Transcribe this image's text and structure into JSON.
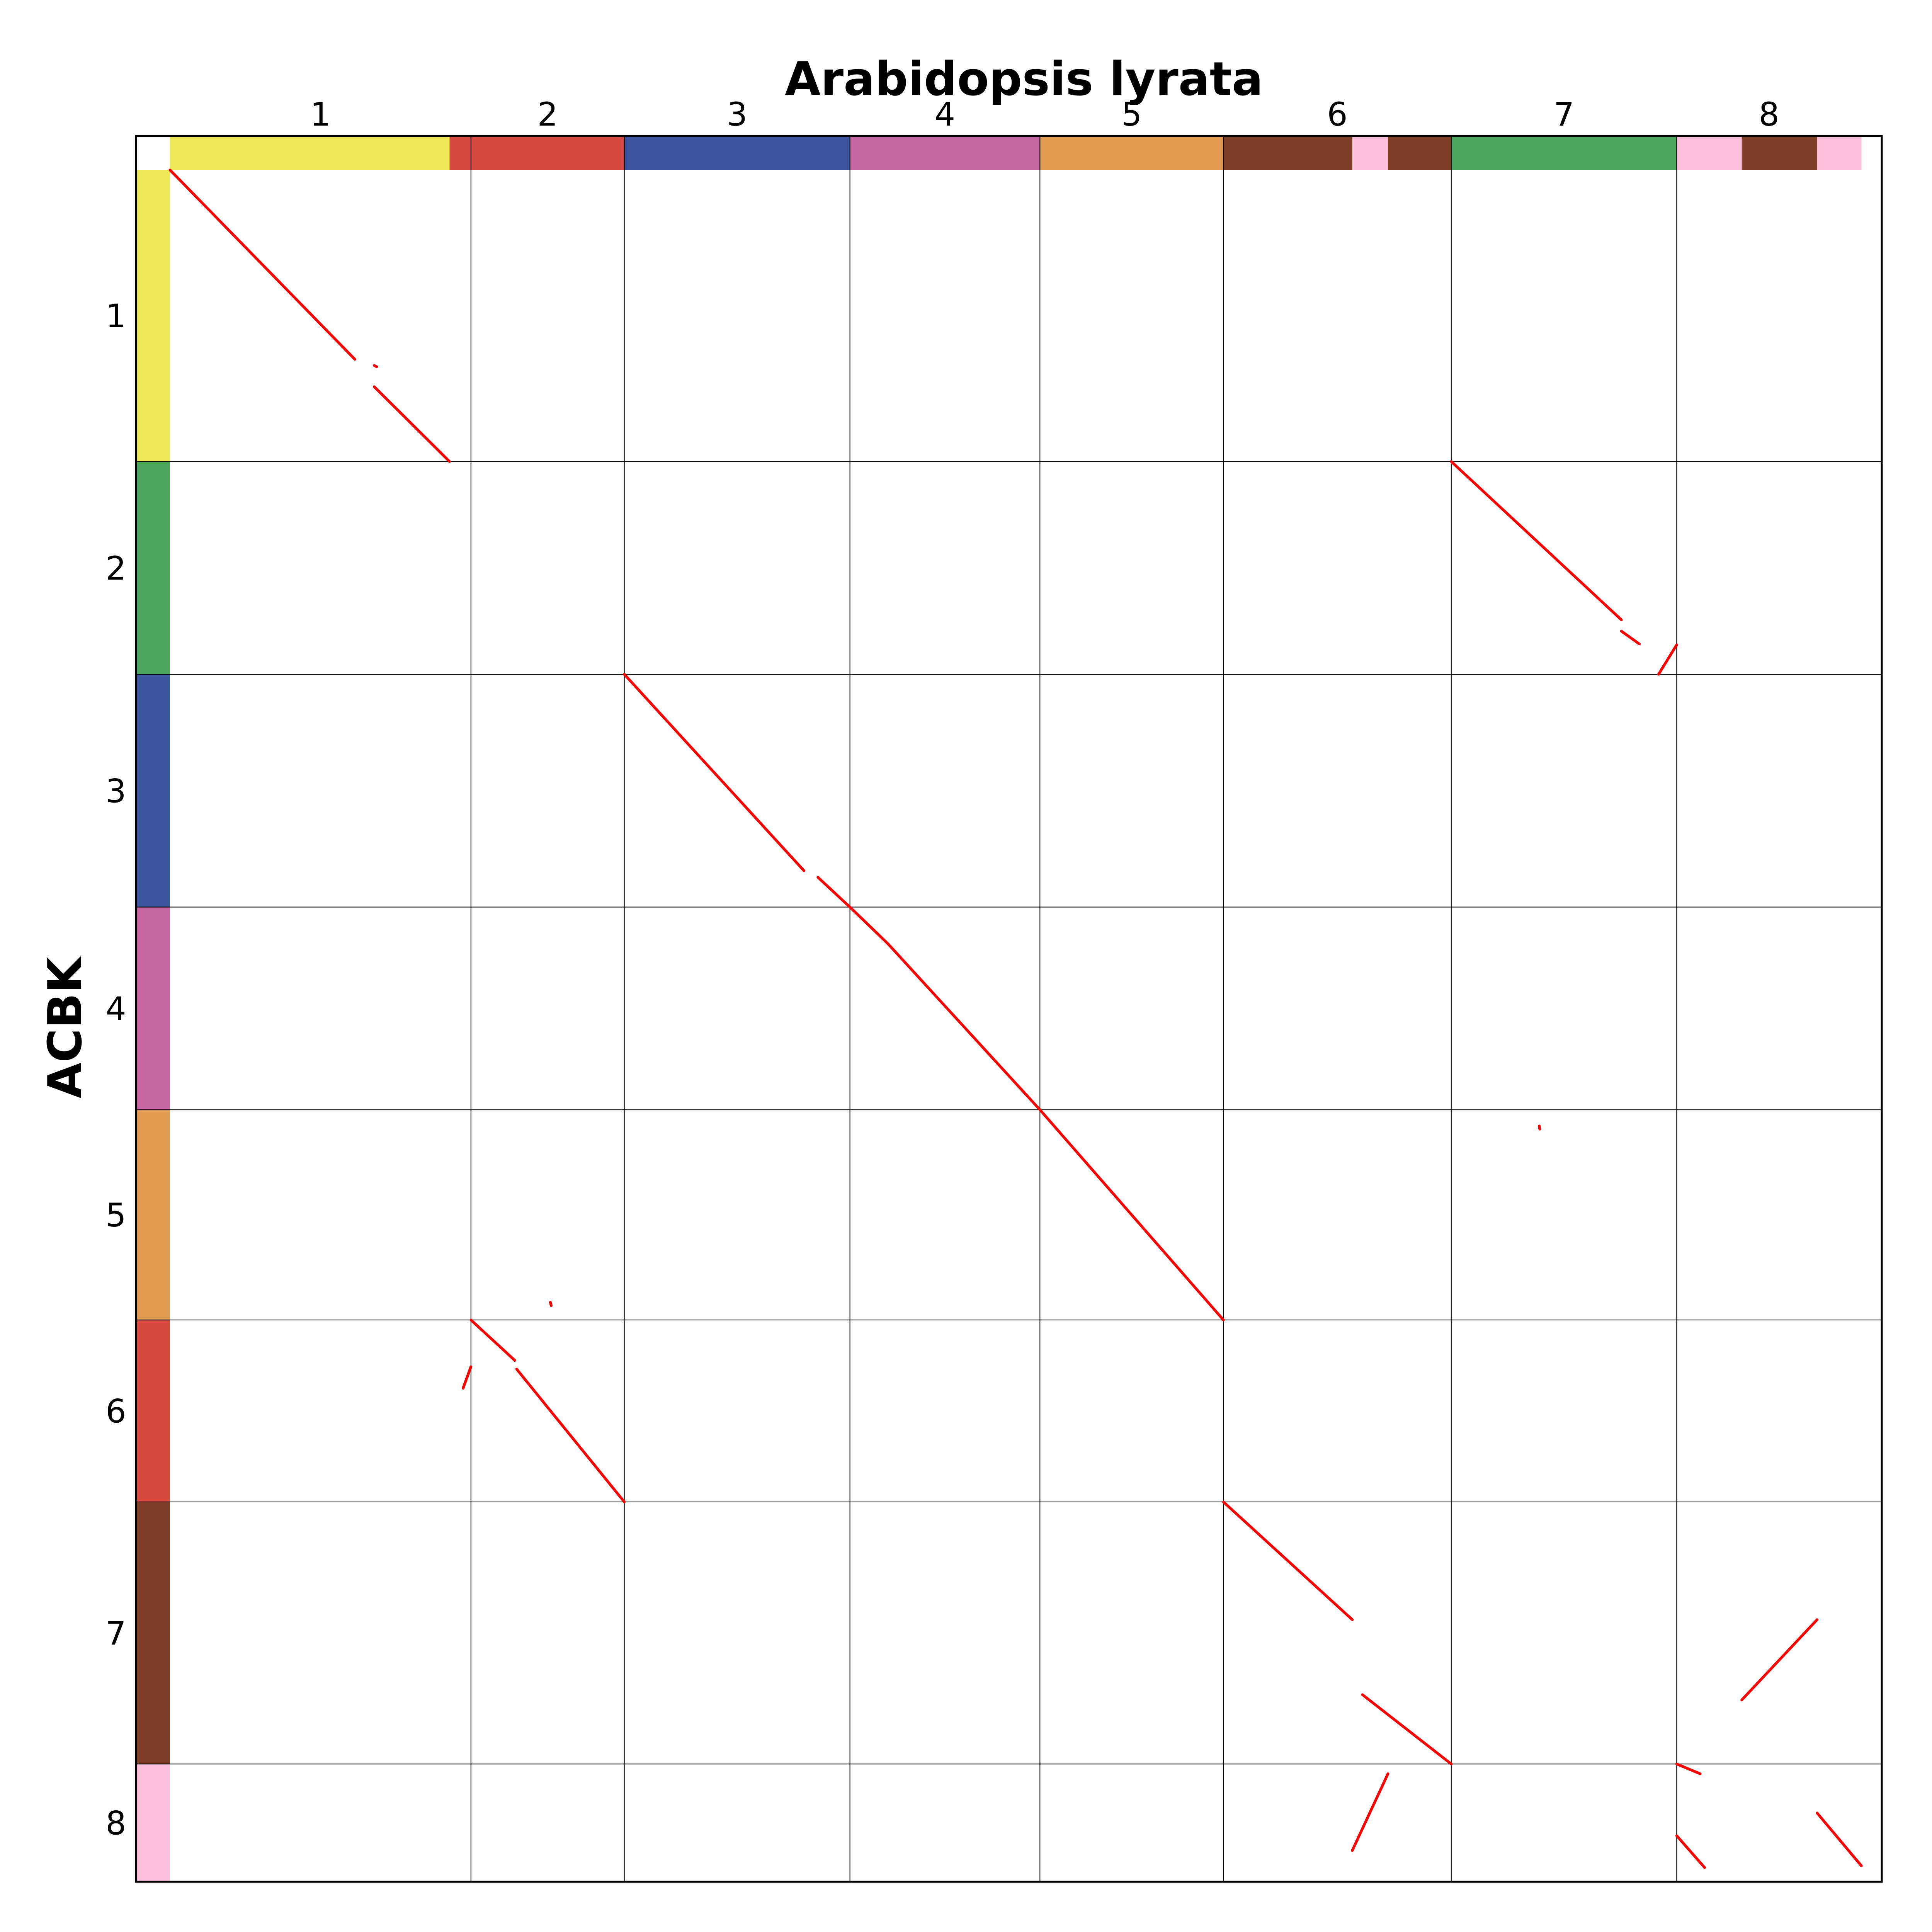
{
  "chart_data": {
    "type": "scatter",
    "title": "Arabidopsis lyrata",
    "xlabel": "Arabidopsis lyrata",
    "ylabel": "ACBK",
    "grid": true,
    "x_chromosomes": [
      "1",
      "2",
      "3",
      "4",
      "5",
      "6",
      "7",
      "8"
    ],
    "y_chromosomes": [
      "1",
      "2",
      "3",
      "4",
      "5",
      "6",
      "7",
      "8"
    ],
    "x_bounds": [
      0,
      0.1758,
      0.2654,
      0.3972,
      0.5082,
      0.6154,
      0.7485,
      0.8802,
      0.9881
    ],
    "y_bounds": [
      0,
      0.1703,
      0.2946,
      0.4306,
      0.549,
      0.6718,
      0.7781,
      0.9312,
      1.0
    ],
    "x_colorbar": [
      {
        "from": 0,
        "to": 0.1633,
        "color": "#EEE857"
      },
      {
        "from": 0.1633,
        "to": 0.1758,
        "color": "#D7483E"
      },
      {
        "from": 0.1758,
        "to": 0.2654,
        "color": "#D7483E"
      },
      {
        "from": 0.2654,
        "to": 0.3972,
        "color": "#3C559E"
      },
      {
        "from": 0.3972,
        "to": 0.5082,
        "color": "#C664A1"
      },
      {
        "from": 0.5082,
        "to": 0.6154,
        "color": "#E09A51"
      },
      {
        "from": 0.6154,
        "to": 0.6907,
        "color": "#7F3F27"
      },
      {
        "from": 0.6907,
        "to": 0.7115,
        "color": "#FBBFDA"
      },
      {
        "from": 0.7115,
        "to": 0.7485,
        "color": "#7F3F27"
      },
      {
        "from": 0.7485,
        "to": 0.8802,
        "color": "#4CA55E"
      },
      {
        "from": 0.8802,
        "to": 0.9182,
        "color": "#FBBFDA"
      },
      {
        "from": 0.9182,
        "to": 0.9622,
        "color": "#7F3F27"
      },
      {
        "from": 0.9622,
        "to": 0.9881,
        "color": "#FBBFDA"
      }
    ],
    "y_colors": [
      "#EEE857",
      "#4CA55E",
      "#3C559E",
      "#C664A1",
      "#E09A51",
      "#D7483E",
      "#7F3F27",
      "#FBBFDA"
    ],
    "dot_color": "#FF0000",
    "segments": [
      {
        "x": [
          0,
          0.108
        ],
        "y": [
          0,
          0.1106
        ]
      },
      {
        "x": [
          0.1193,
          0.1633
        ],
        "y": [
          0.1266,
          0.1703
        ]
      },
      {
        "x": [
          0.1193,
          0.1207
        ],
        "y": [
          0.1142,
          0.1149
        ]
      },
      {
        "x": [
          0.7485,
          0.8479
        ],
        "y": [
          0.1703,
          0.2628
        ]
      },
      {
        "x": [
          0.8479,
          0.8584
        ],
        "y": [
          0.2694,
          0.2769
        ]
      },
      {
        "x": [
          0.8696,
          0.8802
        ],
        "y": [
          0.2946,
          0.2774
        ]
      },
      {
        "x": [
          0.2654,
          0.3704
        ],
        "y": [
          0.2946,
          0.4094
        ]
      },
      {
        "x": [
          0.3785,
          0.3972
        ],
        "y": [
          0.4132,
          0.4306
        ]
      },
      {
        "x": [
          0.3972,
          0.4194
        ],
        "y": [
          0.4306,
          0.452
        ]
      },
      {
        "x": [
          0.4194,
          0.5082
        ],
        "y": [
          0.452,
          0.549
        ]
      },
      {
        "x": [
          0.5082,
          0.6154
        ],
        "y": [
          0.549,
          0.6718
        ]
      },
      {
        "x": [
          0.1758,
          0.2014
        ],
        "y": [
          0.6718,
          0.6954
        ]
      },
      {
        "x": [
          0.2025,
          0.2654
        ],
        "y": [
          0.7005,
          0.7781
        ]
      },
      {
        "x": [
          0.1712,
          0.1758
        ],
        "y": [
          0.7117,
          0.6991
        ]
      },
      {
        "x": [
          0.6154,
          0.6907
        ],
        "y": [
          0.7781,
          0.8469
        ]
      },
      {
        "x": [
          0.6966,
          0.7485
        ],
        "y": [
          0.8907,
          0.9312
        ]
      },
      {
        "x": [
          0.9182,
          0.9622
        ],
        "y": [
          0.8938,
          0.8469
        ]
      },
      {
        "x": [
          0.8802,
          0.8939
        ],
        "y": [
          0.9312,
          0.9369
        ]
      },
      {
        "x": [
          0.6907,
          0.7115
        ],
        "y": [
          0.9817,
          0.9369
        ]
      },
      {
        "x": [
          0.8802,
          0.8965
        ],
        "y": [
          0.9731,
          0.9917
        ]
      },
      {
        "x": [
          0.9622,
          0.9881
        ],
        "y": [
          0.9598,
          0.9907
        ]
      },
      {
        "x": [
          0.7999,
          0.8002
        ],
        "y": [
          0.5585,
          0.5603
        ]
      },
      {
        "x": [
          0.2222,
          0.2227
        ],
        "y": [
          0.6615,
          0.6634
        ]
      }
    ]
  }
}
